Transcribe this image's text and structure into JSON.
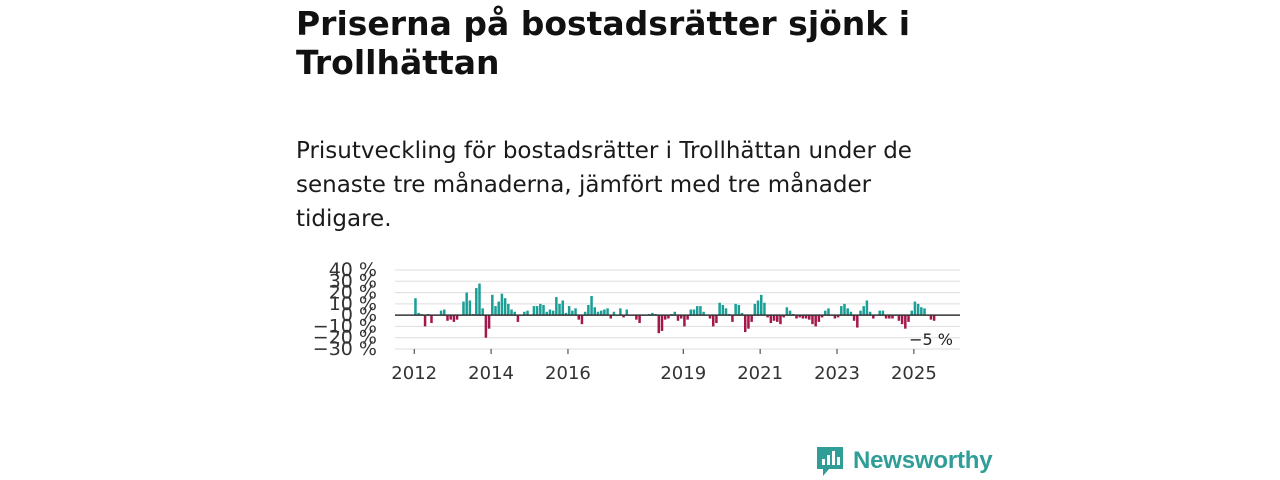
{
  "header": {
    "title": "Priserna på bostadsrätter sjönk i Trollhättan",
    "subtitle": "Prisutveckling för bostadsrätter i Trollhättan under de senaste tre månaderna, jämfört med tre månader tidigare."
  },
  "colors": {
    "positive": "#1a9e96",
    "negative": "#a3174a",
    "grid": "#dddddd",
    "zero_line": "#333333",
    "brand": "#2e9e96"
  },
  "brand": {
    "name": "Newsworthy",
    "icon": "newsworthy-logo-icon"
  },
  "chart_data": {
    "type": "bar",
    "title": "Priserna på bostadsrätter sjönk i Trollhättan",
    "xlabel": "",
    "ylabel": "",
    "ylim": [
      -30,
      40
    ],
    "y_ticks": [
      -30,
      -20,
      -10,
      0,
      10,
      20,
      30,
      40
    ],
    "y_tick_labels": [
      "−30 %",
      "−20 %",
      "−10 %",
      "0 %",
      "10 %",
      "20 %",
      "30 %",
      "40 %"
    ],
    "x_range": [
      2011.5,
      2026.2
    ],
    "x_ticks": [
      2012,
      2014,
      2016,
      2019,
      2021,
      2023,
      2025
    ],
    "x_tick_labels": [
      "2012",
      "2014",
      "2016",
      "2019",
      "2021",
      "2023",
      "2025"
    ],
    "grid": true,
    "annotation": {
      "label": "−5 %",
      "value": -5
    },
    "x_start": 2012.0,
    "x_step": 0.0833,
    "values": [
      15,
      2,
      1,
      -10,
      1,
      -7,
      0,
      0,
      4,
      5,
      -5,
      -4,
      -6,
      -4,
      0,
      12,
      20,
      13,
      1,
      24,
      28,
      6,
      -20,
      -12,
      18,
      8,
      12,
      19,
      15,
      10,
      5,
      3,
      -6,
      0,
      3,
      4,
      0,
      8,
      8,
      10,
      9,
      3,
      5,
      4,
      16,
      10,
      13,
      2,
      8,
      4,
      6,
      -4,
      -8,
      3,
      9,
      17,
      7,
      3,
      4,
      5,
      6,
      -3,
      3,
      0,
      6,
      -2,
      5,
      0,
      0,
      -4,
      -7,
      0,
      0,
      1,
      2,
      1,
      -16,
      -14,
      -4,
      -3,
      1,
      3,
      -5,
      -3,
      -10,
      -4,
      5,
      5,
      8,
      8,
      3,
      0,
      -3,
      -10,
      -7,
      11,
      9,
      6,
      1,
      -6,
      10,
      9,
      2,
      -15,
      -12,
      -6,
      10,
      13,
      18,
      11,
      -2,
      -7,
      -5,
      -6,
      -8,
      -2,
      7,
      4,
      1,
      -3,
      -2,
      -3,
      -3,
      -4,
      -8,
      -10,
      -6,
      -2,
      4,
      6,
      0,
      -3,
      -2,
      8,
      10,
      6,
      3,
      -5,
      -11,
      4,
      8,
      13,
      3,
      -3,
      0,
      4,
      4,
      -3,
      -3,
      -3,
      0,
      -5,
      -8,
      -12,
      -6,
      4,
      12,
      10,
      7,
      6,
      0,
      -4,
      -5
    ]
  }
}
